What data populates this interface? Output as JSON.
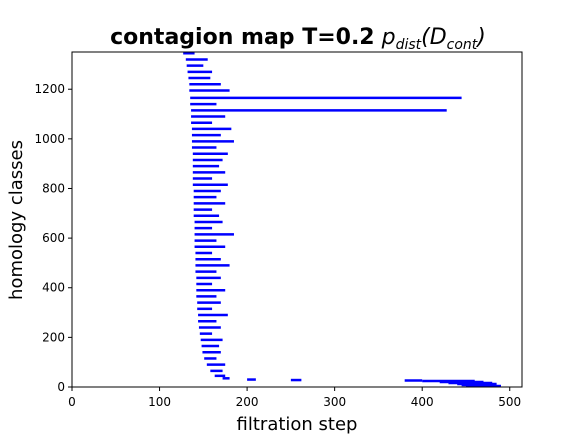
{
  "chart_data": {
    "type": "barcode",
    "title": "contagion map T=0.2",
    "title_math": {
      "base": "p",
      "sub": "dist",
      "open": "(D",
      "sub2": "cont",
      "close": ")"
    },
    "x_label": "filtration step",
    "y_label": "homology classes",
    "color": "#0000ff",
    "xlim": [
      0,
      514
    ],
    "xticks": [
      0,
      100,
      200,
      300,
      400,
      500
    ],
    "ylim": [
      0,
      1350
    ],
    "yticks": [
      0,
      200,
      400,
      600,
      800,
      1000,
      1200
    ],
    "classes": [
      1345,
      1320,
      1295,
      1270,
      1245,
      1220,
      1195,
      1165,
      1140,
      1115,
      1090,
      1065,
      1040,
      1015,
      990,
      965,
      940,
      915,
      890,
      865,
      840,
      815,
      790,
      765,
      740,
      715,
      690,
      665,
      640,
      615,
      590,
      565,
      540,
      515,
      490,
      465,
      440,
      415,
      390,
      365,
      340,
      315,
      290,
      265,
      240,
      215,
      190,
      165,
      140,
      115,
      90,
      65,
      45,
      35,
      30,
      28,
      26,
      24,
      20,
      16,
      12,
      8,
      4
    ],
    "births": [
      127,
      130,
      131,
      132,
      133,
      134,
      134,
      135,
      135,
      136,
      136,
      136,
      137,
      137,
      137,
      137,
      138,
      138,
      138,
      138,
      138,
      138,
      139,
      139,
      139,
      139,
      139,
      140,
      140,
      140,
      140,
      140,
      141,
      141,
      141,
      141,
      142,
      142,
      142,
      142,
      143,
      143,
      144,
      144,
      145,
      146,
      147,
      148,
      149,
      151,
      154,
      158,
      163,
      172,
      200,
      250,
      380,
      400,
      420,
      430,
      440,
      445,
      450
    ],
    "deaths": [
      140,
      155,
      150,
      160,
      158,
      170,
      180,
      445,
      165,
      428,
      175,
      160,
      182,
      170,
      185,
      165,
      178,
      172,
      168,
      175,
      160,
      178,
      170,
      165,
      175,
      160,
      168,
      172,
      160,
      185,
      165,
      175,
      160,
      170,
      180,
      165,
      170,
      160,
      175,
      165,
      170,
      160,
      178,
      165,
      170,
      160,
      172,
      168,
      170,
      165,
      175,
      172,
      175,
      180,
      210,
      262,
      400,
      460,
      470,
      480,
      485,
      480,
      490
    ]
  }
}
